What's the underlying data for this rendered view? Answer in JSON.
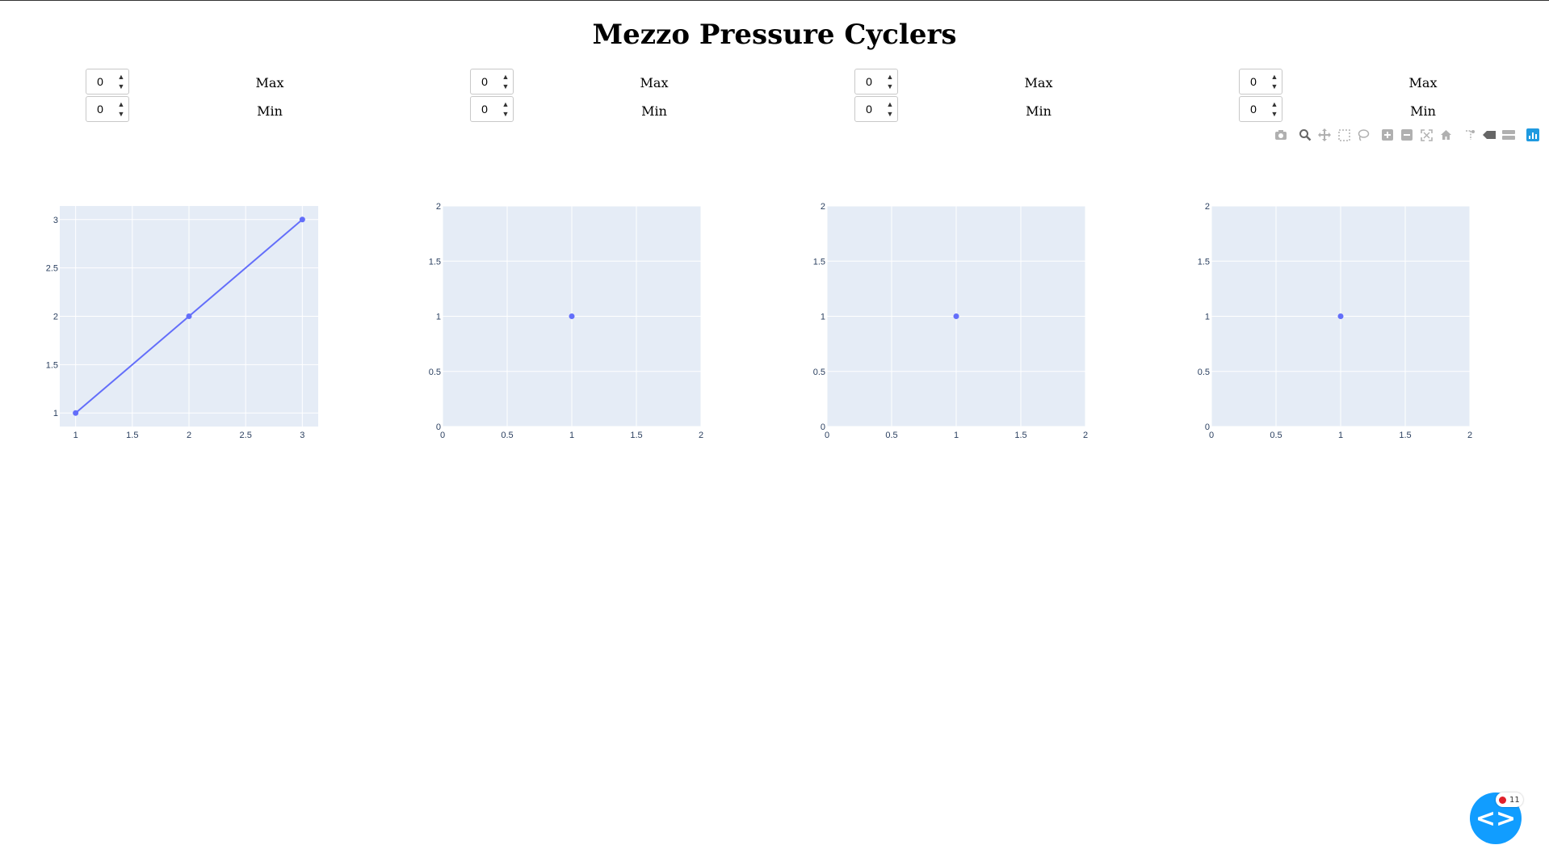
{
  "page": {
    "title": "Mezzo Pressure Cyclers"
  },
  "panels": [
    {
      "max_value": "0",
      "min_value": "0",
      "max_label": "Max",
      "min_label": "Min"
    },
    {
      "max_value": "0",
      "min_value": "0",
      "max_label": "Max",
      "min_label": "Min"
    },
    {
      "max_value": "0",
      "min_value": "0",
      "max_label": "Max",
      "min_label": "Min"
    },
    {
      "max_value": "0",
      "min_value": "0",
      "max_label": "Max",
      "min_label": "Min"
    }
  ],
  "modebar": {
    "icons": [
      "camera-icon",
      "zoom-icon",
      "pan-icon",
      "box-select-icon",
      "lasso-select-icon",
      "zoom-in-icon",
      "zoom-out-icon",
      "autoscale-icon",
      "reset-axes-icon",
      "spike-lines-icon",
      "hover-closest-icon",
      "hover-compare-icon",
      "plotly-logo-icon"
    ]
  },
  "dev_tools": {
    "count": "11",
    "error_color": "#e0202a"
  },
  "colors": {
    "trace": "#636efa",
    "plot_bg": "#e5ecf6",
    "axis_text": "#2a3f5f",
    "fab": "#119dff"
  },
  "chart_data": [
    {
      "type": "line",
      "x": [
        1,
        2,
        3
      ],
      "y": [
        1,
        2,
        3
      ],
      "xlim": [
        0.86,
        3.14
      ],
      "ylim": [
        0.86,
        3.14
      ],
      "xticks": [
        "1",
        "1.5",
        "2",
        "2.5",
        "3"
      ],
      "xtick_values": [
        1,
        1.5,
        2,
        2.5,
        3
      ],
      "yticks": [
        "1",
        "1.5",
        "2",
        "2.5",
        "3"
      ],
      "ytick_values": [
        1,
        1.5,
        2,
        2.5,
        3
      ],
      "title": "",
      "xlabel": "",
      "ylabel": "",
      "grid": true
    },
    {
      "type": "scatter",
      "x": [
        1
      ],
      "y": [
        1
      ],
      "xlim": [
        0,
        2
      ],
      "ylim": [
        0,
        2
      ],
      "xticks": [
        "0",
        "0.5",
        "1",
        "1.5",
        "2"
      ],
      "xtick_values": [
        0,
        0.5,
        1,
        1.5,
        2
      ],
      "yticks": [
        "0",
        "0.5",
        "1",
        "1.5",
        "2"
      ],
      "ytick_values": [
        0,
        0.5,
        1,
        1.5,
        2
      ],
      "title": "",
      "xlabel": "",
      "ylabel": "",
      "grid": true
    },
    {
      "type": "scatter",
      "x": [
        1
      ],
      "y": [
        1
      ],
      "xlim": [
        0,
        2
      ],
      "ylim": [
        0,
        2
      ],
      "xticks": [
        "0",
        "0.5",
        "1",
        "1.5",
        "2"
      ],
      "xtick_values": [
        0,
        0.5,
        1,
        1.5,
        2
      ],
      "yticks": [
        "0",
        "0.5",
        "1",
        "1.5",
        "2"
      ],
      "ytick_values": [
        0,
        0.5,
        1,
        1.5,
        2
      ],
      "title": "",
      "xlabel": "",
      "ylabel": "",
      "grid": true
    },
    {
      "type": "scatter",
      "x": [
        1
      ],
      "y": [
        1
      ],
      "xlim": [
        0,
        2
      ],
      "ylim": [
        0,
        2
      ],
      "xticks": [
        "0",
        "0.5",
        "1",
        "1.5",
        "2"
      ],
      "xtick_values": [
        0,
        0.5,
        1,
        1.5,
        2
      ],
      "yticks": [
        "0",
        "0.5",
        "1",
        "1.5",
        "2"
      ],
      "ytick_values": [
        0,
        0.5,
        1,
        1.5,
        2
      ],
      "title": "",
      "xlabel": "",
      "ylabel": "",
      "grid": true
    }
  ]
}
